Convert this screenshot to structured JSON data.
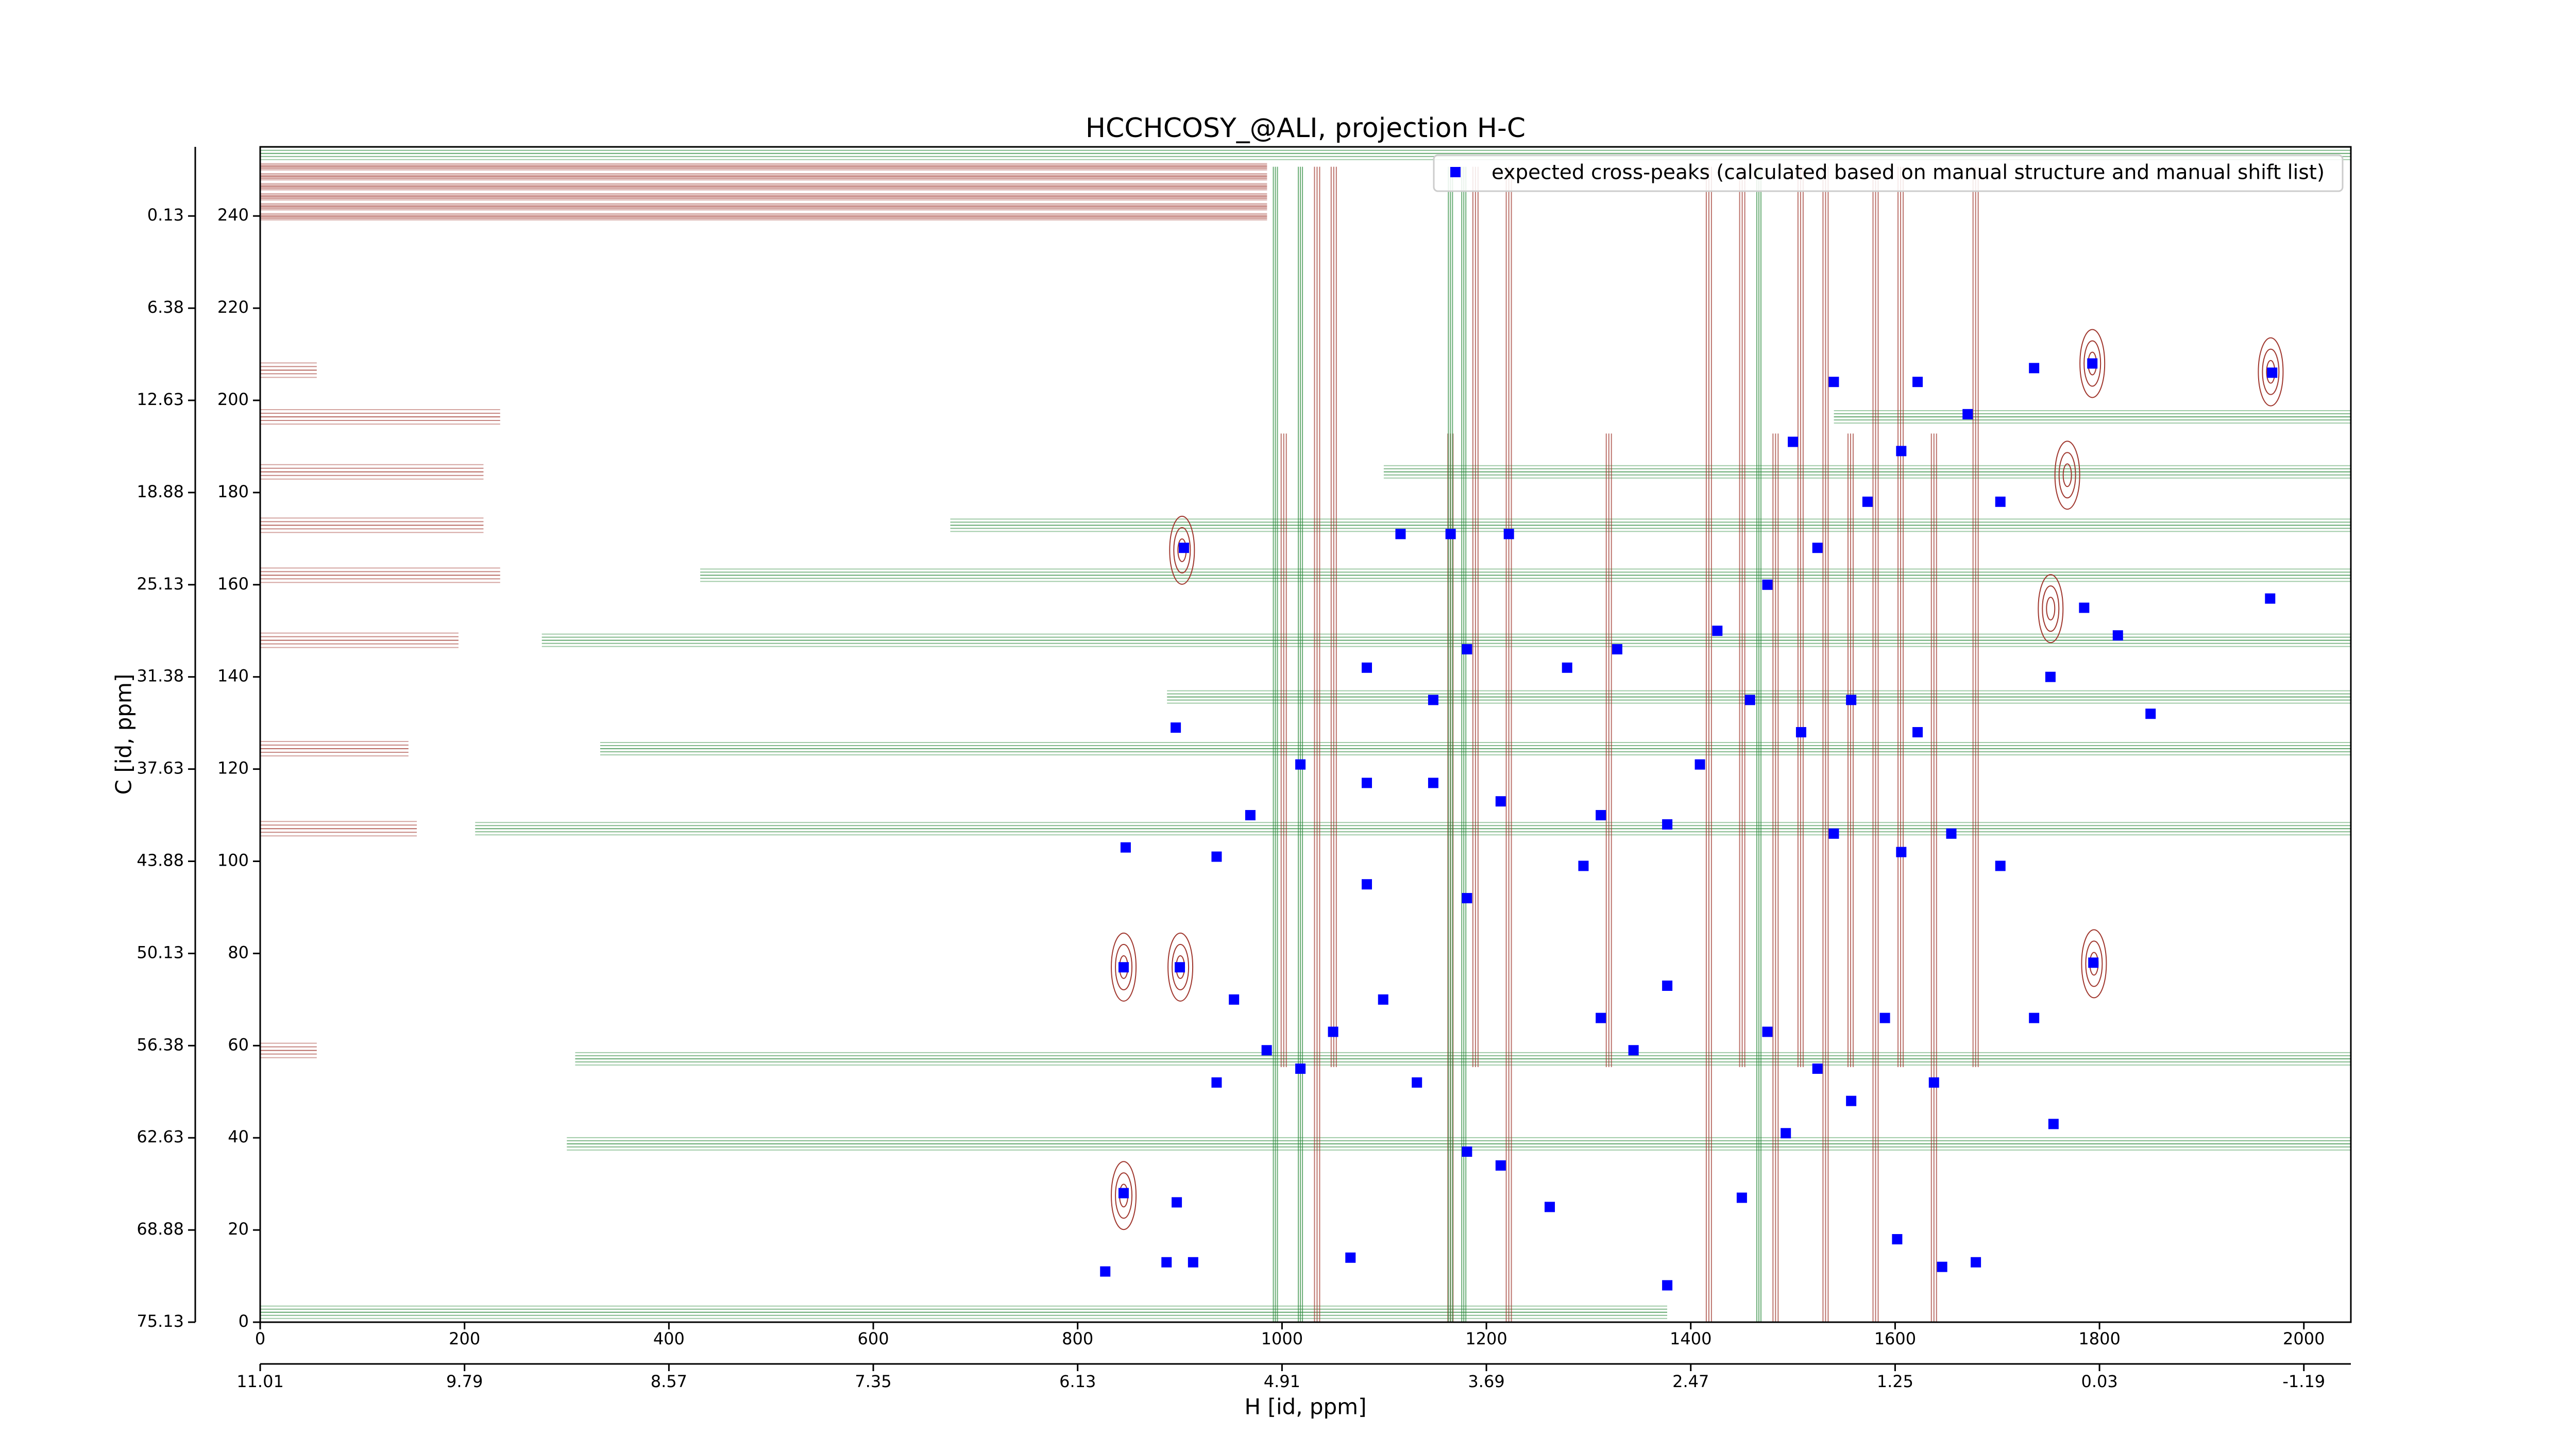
{
  "chart_data": {
    "type": "scatter",
    "title": "HCCHCOSY_@ALI, projection H-C",
    "xlabel": "H [id, ppm]",
    "ylabel": "C [id, ppm]",
    "xlim": [
      0,
      2046
    ],
    "ylim": [
      0,
      255
    ],
    "xticks": [
      0,
      200,
      400,
      600,
      800,
      1000,
      1200,
      1400,
      1600,
      1800,
      2000
    ],
    "yticks": [
      0,
      20,
      40,
      60,
      80,
      100,
      120,
      140,
      160,
      180,
      200,
      220,
      240
    ],
    "secondary_xticks": [
      {
        "value": 0,
        "label": "11.01"
      },
      {
        "value": 200,
        "label": "9.79"
      },
      {
        "value": 400,
        "label": "8.57"
      },
      {
        "value": 600,
        "label": "7.35"
      },
      {
        "value": 800,
        "label": "6.13"
      },
      {
        "value": 1000,
        "label": "4.91"
      },
      {
        "value": 1200,
        "label": "3.69"
      },
      {
        "value": 1400,
        "label": "2.47"
      },
      {
        "value": 1600,
        "label": "1.25"
      },
      {
        "value": 1800,
        "label": "0.03"
      },
      {
        "value": 2000,
        "label": "-1.19"
      }
    ],
    "secondary_yticks": [
      {
        "value": 0,
        "label": "75.13"
      },
      {
        "value": 20,
        "label": "68.88"
      },
      {
        "value": 40,
        "label": "62.63"
      },
      {
        "value": 60,
        "label": "56.38"
      },
      {
        "value": 80,
        "label": "50.13"
      },
      {
        "value": 100,
        "label": "43.88"
      },
      {
        "value": 120,
        "label": "37.63"
      },
      {
        "value": 140,
        "label": "31.38"
      },
      {
        "value": 160,
        "label": "25.13"
      },
      {
        "value": 180,
        "label": "18.88"
      },
      {
        "value": 200,
        "label": "12.63"
      },
      {
        "value": 220,
        "label": "6.38"
      },
      {
        "value": 240,
        "label": "0.13"
      }
    ],
    "series": [
      {
        "name": "expected cross-peaks (calculated based on manual structure and manual shift list)",
        "color": "#0000ff",
        "x": [
          1793,
          1969,
          1967,
          1794,
          845,
          900,
          845,
          897,
          827,
          887,
          913,
          904,
          896,
          847,
          1785,
          1818,
          1752,
          1850,
          1736,
          1755,
          1679,
          1646,
          1602,
          1493,
          1450,
          1377,
          1262,
          1067,
          1018,
          1050,
          1099,
          1132,
          1181,
          1214,
          1312,
          1344,
          1377,
          1475,
          1524,
          1557,
          1590,
          1638,
          953,
          985,
          936,
          1116,
          1165,
          1222,
          1083,
          1148,
          1181,
          1279,
          1328,
          1426,
          1475,
          1524,
          1573,
          1606,
          1671,
          1736,
          1540,
          1622,
          1500,
          1703,
          1458,
          1508,
          1557,
          1622,
          1409,
          1312,
          1377,
          1540,
          1606,
          1655,
          1703,
          1214,
          1148,
          1083,
          1018,
          969,
          936,
          1295,
          1181,
          1083
        ],
        "y": [
          208,
          206,
          157,
          78,
          77,
          77,
          28,
          26,
          11,
          13,
          13,
          168,
          129,
          103,
          155,
          149,
          140,
          132,
          66,
          43,
          13,
          12,
          18,
          41,
          27,
          8,
          25,
          14,
          55,
          63,
          70,
          52,
          37,
          34,
          66,
          59,
          73,
          63,
          55,
          48,
          66,
          52,
          70,
          59,
          52,
          171,
          171,
          171,
          142,
          135,
          146,
          142,
          146,
          150,
          160,
          168,
          178,
          189,
          197,
          207,
          204,
          204,
          191,
          178,
          135,
          128,
          135,
          128,
          121,
          110,
          108,
          106,
          102,
          106,
          99,
          113,
          117,
          117,
          121,
          110,
          101,
          99,
          92,
          95
        ]
      }
    ]
  }
}
